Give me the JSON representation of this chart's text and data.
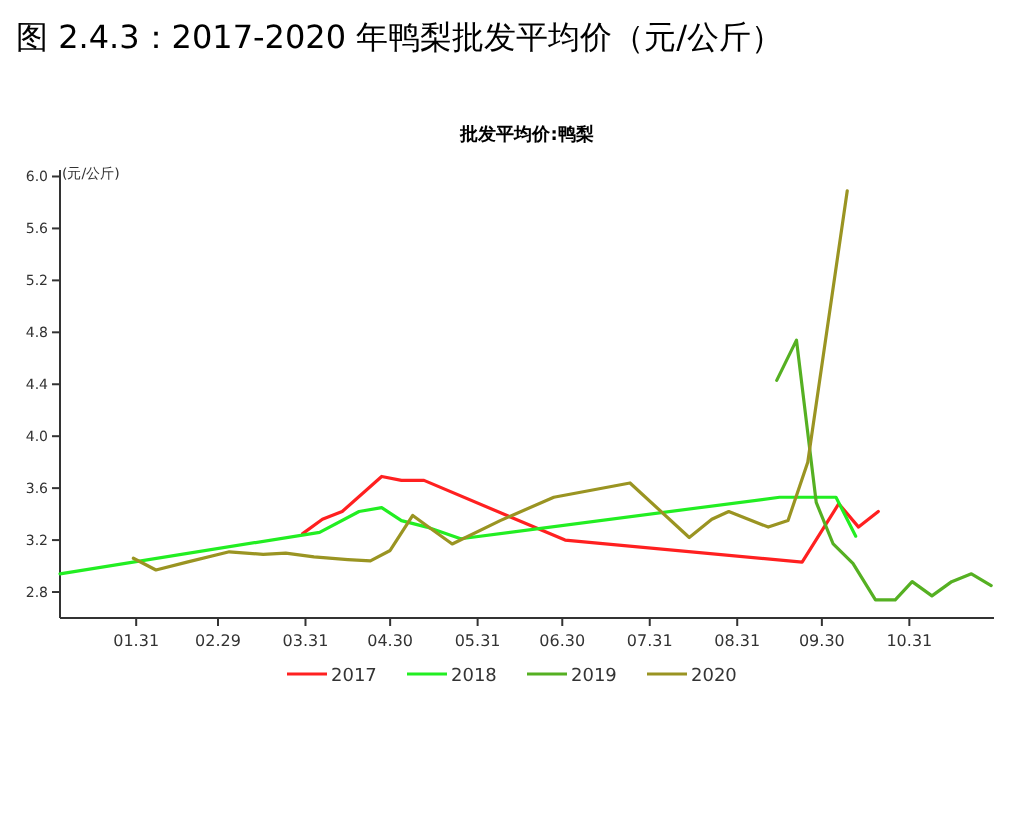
{
  "chart_data": {
    "type": "line",
    "title": "图 2.4.3：2017-2020 年鸭梨批发平均价（元/公斤）",
    "subtitle": "批发平均价:鸭梨",
    "ylabel": "(元/公斤)",
    "xlim": [
      "--01-04",
      "--11-30"
    ],
    "xticks": [
      {
        "value": "--01-31",
        "label": "01.31"
      },
      {
        "value": "--02-29",
        "label": "02.29"
      },
      {
        "value": "--03-31",
        "label": "03.31"
      },
      {
        "value": "--04-30",
        "label": "04.30"
      },
      {
        "value": "--05-31",
        "label": "05.31"
      },
      {
        "value": "--06-30",
        "label": "06.30"
      },
      {
        "value": "--07-31",
        "label": "07.31"
      },
      {
        "value": "--08-31",
        "label": "08.31"
      },
      {
        "value": "--09-30",
        "label": "09.30"
      },
      {
        "value": "--10-31",
        "label": "10.31"
      }
    ],
    "ylim": [
      2.6,
      6.05
    ],
    "yticks": [
      {
        "value": 2.8,
        "label": "2.8"
      },
      {
        "value": 3.2,
        "label": "3.2"
      },
      {
        "value": 3.6,
        "label": "3.6"
      },
      {
        "value": 4.0,
        "label": "4.0"
      },
      {
        "value": 4.4,
        "label": "4.4"
      },
      {
        "value": 4.8,
        "label": "4.8"
      },
      {
        "value": 5.2,
        "label": "5.2"
      },
      {
        "value": 5.6,
        "label": "5.6"
      },
      {
        "value": 6.0,
        "label": "6.0"
      }
    ],
    "grid": false,
    "legend": "bottom",
    "marker": "none",
    "line_style": "solid",
    "series": [
      {
        "name": "2017",
        "color": "#ff2020",
        "x": [
          "--03-30",
          "--04-06",
          "--04-13",
          "--04-27",
          "--05-04",
          "--05-12",
          "--07-01",
          "--09-23",
          "--10-06",
          "--10-13",
          "--10-20"
        ],
        "values": [
          3.25,
          3.36,
          3.42,
          3.69,
          3.66,
          3.66,
          3.2,
          3.03,
          3.48,
          3.3,
          3.42
        ]
      },
      {
        "name": "2018",
        "color": "#22ee22",
        "x": [
          "--01-04",
          "--04-05",
          "--04-19",
          "--04-27",
          "--05-04",
          "--05-13",
          "--05-25",
          "--09-15",
          "--10-05",
          "--10-12"
        ],
        "values": [
          2.94,
          3.26,
          3.42,
          3.45,
          3.35,
          3.3,
          3.21,
          3.53,
          3.53,
          3.23
        ]
      },
      {
        "name": "2019",
        "color": "#55b022",
        "x": [
          "--09-14",
          "--09-21",
          "--09-28",
          "--10-04",
          "--10-11",
          "--10-19",
          "--10-26",
          "--11-01",
          "--11-08",
          "--11-15",
          "--11-22",
          "--11-29"
        ],
        "values": [
          4.43,
          4.74,
          3.49,
          3.17,
          3.02,
          2.74,
          2.74,
          2.88,
          2.77,
          2.88,
          2.94,
          2.85
        ]
      },
      {
        "name": "2020",
        "color": "#9a9422",
        "x": [
          "--01-30",
          "--02-07",
          "--02-18",
          "--03-04",
          "--03-16",
          "--03-24",
          "--04-03",
          "--04-15",
          "--04-23",
          "--04-30",
          "--05-08",
          "--05-13",
          "--05-22",
          "--06-08",
          "--06-27",
          "--07-24",
          "--08-14",
          "--08-22",
          "--08-28",
          "--09-11",
          "--09-18",
          "--09-25",
          "--10-09"
        ],
        "values": [
          3.06,
          2.97,
          3.03,
          3.11,
          3.09,
          3.1,
          3.07,
          3.05,
          3.04,
          3.12,
          3.39,
          3.31,
          3.17,
          3.35,
          3.53,
          3.64,
          3.22,
          3.36,
          3.42,
          3.3,
          3.35,
          3.8,
          5.89
        ]
      }
    ]
  }
}
